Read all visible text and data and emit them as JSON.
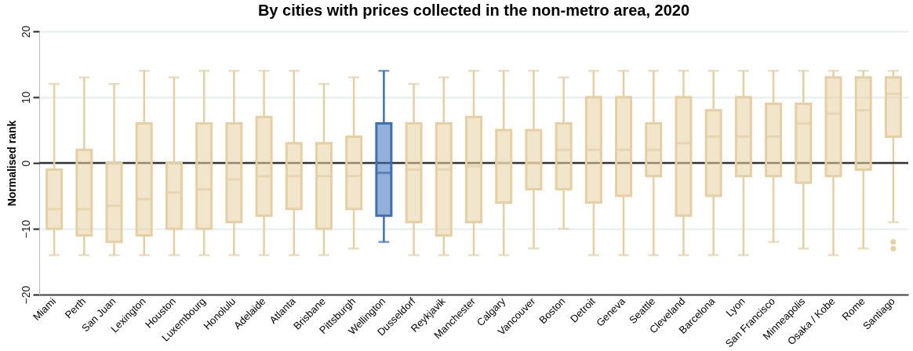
{
  "chart_data": {
    "type": "box",
    "title": "By cities with prices collected in the non-metro area, 2020",
    "ylabel": "Normalised rank",
    "categories": [
      "Miami",
      "Perth",
      "San Juan",
      "Lexington",
      "Houston",
      "Luxembourg",
      "Honolulu",
      "Adelaide",
      "Atlanta",
      "Brisbane",
      "Pittsburgh",
      "Wellington",
      "Dusseldorf",
      "Reykjavik",
      "Manchester",
      "Calgary",
      "Vancouver",
      "Boston",
      "Detroit",
      "Geneva",
      "Seattle",
      "Cleveland",
      "Barcelona",
      "Lyon",
      "San Francisco",
      "Minneapolis",
      "Osaka / Kobe",
      "Rome",
      "Santiago"
    ],
    "boxes": [
      {
        "low": -14,
        "q1": -10,
        "median": -7,
        "q3": -1,
        "high": 12
      },
      {
        "low": -14,
        "q1": -11,
        "median": -7,
        "q3": 2,
        "high": 13
      },
      {
        "low": -14,
        "q1": -12,
        "median": -6.5,
        "q3": 0,
        "high": 12
      },
      {
        "low": -14,
        "q1": -11,
        "median": -5.5,
        "q3": 6,
        "high": 14
      },
      {
        "low": -14,
        "q1": -10,
        "median": -4.5,
        "q3": 0,
        "high": 13
      },
      {
        "low": -14,
        "q1": -10,
        "median": -4,
        "q3": 6,
        "high": 14
      },
      {
        "low": -14,
        "q1": -9,
        "median": -2.5,
        "q3": 6,
        "high": 14
      },
      {
        "low": -14,
        "q1": -8,
        "median": -2,
        "q3": 7,
        "high": 14
      },
      {
        "low": -14,
        "q1": -7,
        "median": -2,
        "q3": 3,
        "high": 14
      },
      {
        "low": -14,
        "q1": -10,
        "median": -2,
        "q3": 3,
        "high": 12
      },
      {
        "low": -13,
        "q1": -7,
        "median": -2,
        "q3": 4,
        "high": 13
      },
      {
        "low": -12,
        "q1": -8,
        "median": -1.5,
        "q3": 6,
        "high": 14
      },
      {
        "low": -14,
        "q1": -9,
        "median": -1,
        "q3": 6,
        "high": 12
      },
      {
        "low": -14,
        "q1": -11,
        "median": -1,
        "q3": 6,
        "high": 13
      },
      {
        "low": -14,
        "q1": -9,
        "median": -0.5,
        "q3": 7,
        "high": 14
      },
      {
        "low": -14,
        "q1": -6,
        "median": 0,
        "q3": 5,
        "high": 14
      },
      {
        "low": -13,
        "q1": -4,
        "median": 0,
        "q3": 5,
        "high": 14
      },
      {
        "low": -10,
        "q1": -4,
        "median": 2,
        "q3": 6,
        "high": 13
      },
      {
        "low": -14,
        "q1": -6,
        "median": 2,
        "q3": 10,
        "high": 14
      },
      {
        "low": -14,
        "q1": -5,
        "median": 2,
        "q3": 10,
        "high": 14
      },
      {
        "low": -14,
        "q1": -2,
        "median": 2,
        "q3": 6,
        "high": 14
      },
      {
        "low": -14,
        "q1": -8,
        "median": 3,
        "q3": 10,
        "high": 14
      },
      {
        "low": -14,
        "q1": -5,
        "median": 4,
        "q3": 8,
        "high": 14
      },
      {
        "low": -14,
        "q1": -2,
        "median": 4,
        "q3": 10,
        "high": 14
      },
      {
        "low": -12,
        "q1": -2,
        "median": 4,
        "q3": 9,
        "high": 14
      },
      {
        "low": -13,
        "q1": -3,
        "median": 6,
        "q3": 9,
        "high": 14
      },
      {
        "low": -14,
        "q1": -2,
        "median": 7.5,
        "q3": 13,
        "high": 14
      },
      {
        "low": -13,
        "q1": -1,
        "median": 8,
        "q3": 13,
        "high": 14
      },
      {
        "low": -9,
        "q1": 4,
        "median": 10.5,
        "q3": 13,
        "high": 14,
        "outliers": [
          -12,
          -13
        ]
      }
    ],
    "colors": [
      "#e6cfa3",
      "#e6cfa3",
      "#e6cfa3",
      "#e6cfa3",
      "#e6cfa3",
      "#e6cfa3",
      "#e6cfa3",
      "#e6cfa3",
      "#e6cfa3",
      "#e6cfa3",
      "#e6cfa3",
      "#3d6fb4",
      "#e6cfa3",
      "#e6cfa3",
      "#e6cfa3",
      "#e6cfa3",
      "#e6cfa3",
      "#e6cfa3",
      "#e6cfa3",
      "#e6cfa3",
      "#e6cfa3",
      "#e6cfa3",
      "#e6cfa3",
      "#e6cfa3",
      "#e6cfa3",
      "#e6cfa3",
      "#e6cfa3",
      "#e6cfa3",
      "#e6cfa3"
    ],
    "ylim": [
      -20,
      20
    ],
    "yticks": [
      -20,
      -10,
      0,
      10,
      20
    ],
    "grid": "y",
    "ref_lines": [
      {
        "axis": "y",
        "value": 0,
        "color": "#333333"
      }
    ]
  }
}
